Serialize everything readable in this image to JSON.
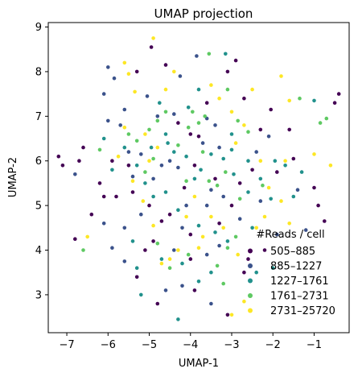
{
  "chart_data": {
    "type": "scatter",
    "title": "UMAP projection",
    "xlabel": "UMAP-1",
    "ylabel": "UMAP-2",
    "xlim": [
      -7.45,
      -0.15
    ],
    "ylim": [
      2.15,
      9.1
    ],
    "xticks": [
      -7,
      -6,
      -5,
      -4,
      -3,
      -2,
      -1
    ],
    "yticks": [
      3,
      4,
      5,
      6,
      7,
      8,
      9
    ],
    "x_tick_labels": [
      "−7",
      "−6",
      "−5",
      "−4",
      "−3",
      "−2",
      "−1"
    ],
    "y_tick_labels": [
      "3",
      "4",
      "5",
      "6",
      "7",
      "8",
      "9"
    ],
    "grid": false,
    "legend": {
      "title": "#Reads / cell",
      "placement": "lower-right",
      "entries": [
        "505–885",
        "885–1227",
        "1227–1761",
        "1761–2731",
        "2731–25720"
      ]
    },
    "series": [
      {
        "color": "#440154",
        "points": [
          [
            -7.2,
            6.1
          ],
          [
            -7.1,
            5.9
          ],
          [
            -6.7,
            6.0
          ],
          [
            -6.6,
            6.3
          ],
          [
            -6.2,
            5.5
          ],
          [
            -5.9,
            6.0
          ],
          [
            -5.5,
            5.9
          ],
          [
            -6.4,
            4.8
          ],
          [
            -5.4,
            5.3
          ],
          [
            -5.3,
            8.0
          ],
          [
            -4.95,
            8.55
          ],
          [
            -4.6,
            8.15
          ],
          [
            -4.3,
            6.85
          ],
          [
            -4.0,
            6.6
          ],
          [
            -3.8,
            6.55
          ],
          [
            -3.6,
            7.3
          ],
          [
            -3.1,
            8.0
          ],
          [
            -2.9,
            8.25
          ],
          [
            -2.7,
            7.4
          ],
          [
            -2.05,
            7.15
          ],
          [
            -2.3,
            6.7
          ],
          [
            -1.5,
            6.05
          ],
          [
            -1.6,
            6.7
          ],
          [
            -0.5,
            7.3
          ],
          [
            -0.4,
            7.5
          ],
          [
            -0.9,
            5.0
          ],
          [
            -0.75,
            4.65
          ],
          [
            -1.0,
            5.4
          ],
          [
            -2.5,
            5.8
          ],
          [
            -2.8,
            5.5
          ],
          [
            -3.0,
            5.0
          ],
          [
            -3.3,
            4.6
          ],
          [
            -3.9,
            5.9
          ],
          [
            -4.15,
            5.4
          ],
          [
            -4.5,
            4.8
          ],
          [
            -4.7,
            4.65
          ],
          [
            -4.9,
            4.2
          ],
          [
            -5.1,
            4.0
          ],
          [
            -5.3,
            3.4
          ],
          [
            -4.8,
            2.8
          ],
          [
            -4.0,
            3.8
          ],
          [
            -3.9,
            3.1
          ],
          [
            -3.1,
            2.55
          ],
          [
            -2.7,
            3.5
          ],
          [
            -2.6,
            3.8
          ],
          [
            -6.1,
            5.2
          ],
          [
            -5.8,
            5.2
          ],
          [
            -5.0,
            5.0
          ],
          [
            -4.0,
            4.35
          ],
          [
            -3.4,
            5.6
          ],
          [
            -2.2,
            4.0
          ],
          [
            -1.9,
            5.75
          ],
          [
            -6.8,
            4.25
          ]
        ]
      },
      {
        "color": "#3b528b",
        "points": [
          [
            -6.8,
            5.7
          ],
          [
            -6.0,
            8.1
          ],
          [
            -6.1,
            7.5
          ],
          [
            -6.0,
            6.9
          ],
          [
            -5.7,
            6.8
          ],
          [
            -5.85,
            7.85
          ],
          [
            -5.6,
            7.15
          ],
          [
            -5.05,
            7.45
          ],
          [
            -4.8,
            7.0
          ],
          [
            -4.4,
            7.05
          ],
          [
            -4.25,
            7.9
          ],
          [
            -3.85,
            8.35
          ],
          [
            -3.6,
            6.95
          ],
          [
            -3.3,
            6.3
          ],
          [
            -3.4,
            6.8
          ],
          [
            -5.5,
            6.2
          ],
          [
            -5.2,
            6.15
          ],
          [
            -4.9,
            5.6
          ],
          [
            -4.7,
            5.9
          ],
          [
            -4.5,
            6.0
          ],
          [
            -3.7,
            6.4
          ],
          [
            -3.2,
            5.2
          ],
          [
            -3.6,
            5.0
          ],
          [
            -4.1,
            5.0
          ],
          [
            -4.2,
            4.5
          ],
          [
            -5.2,
            4.8
          ],
          [
            -5.6,
            4.5
          ],
          [
            -6.1,
            4.6
          ],
          [
            -5.9,
            4.05
          ],
          [
            -5.6,
            3.75
          ],
          [
            -4.2,
            3.2
          ],
          [
            -3.6,
            3.9
          ],
          [
            -3.3,
            4.1
          ],
          [
            -2.8,
            4.7
          ],
          [
            -2.3,
            5.1
          ],
          [
            -1.4,
            5.35
          ],
          [
            -2.1,
            6.55
          ],
          [
            -2.4,
            6.2
          ],
          [
            -1.2,
            4.45
          ],
          [
            -3.5,
            2.8
          ],
          [
            -4.6,
            3.1
          ],
          [
            -4.4,
            4.0
          ],
          [
            -5.4,
            5.65
          ],
          [
            -4.3,
            5.85
          ],
          [
            -3.5,
            5.35
          ],
          [
            -1.9,
            4.35
          ]
        ]
      },
      {
        "color": "#21918c",
        "points": [
          [
            -6.1,
            6.5
          ],
          [
            -5.9,
            5.8
          ],
          [
            -5.4,
            4.2
          ],
          [
            -5.3,
            3.6
          ],
          [
            -5.2,
            3.0
          ],
          [
            -4.95,
            6.3
          ],
          [
            -4.6,
            5.3
          ],
          [
            -4.55,
            6.4
          ],
          [
            -4.4,
            6.2
          ],
          [
            -4.1,
            6.1
          ],
          [
            -3.9,
            5.6
          ],
          [
            -3.75,
            5.8
          ],
          [
            -3.5,
            6.15
          ],
          [
            -3.2,
            6.05
          ],
          [
            -3.0,
            6.25
          ],
          [
            -2.95,
            5.7
          ],
          [
            -2.6,
            5.3
          ],
          [
            -2.3,
            5.6
          ],
          [
            -2.05,
            5.15
          ],
          [
            -1.95,
            6.0
          ],
          [
            -1.7,
            5.9
          ],
          [
            -1.3,
            5.75
          ],
          [
            -1.5,
            5.2
          ],
          [
            -2.5,
            4.5
          ],
          [
            -2.0,
            3.6
          ],
          [
            -2.4,
            3.5
          ],
          [
            -3.1,
            4.2
          ],
          [
            -3.4,
            4.4
          ],
          [
            -3.8,
            4.55
          ],
          [
            -4.2,
            3.7
          ],
          [
            -3.8,
            3.3
          ],
          [
            -3.5,
            3.5
          ],
          [
            -4.3,
            2.45
          ],
          [
            -4.7,
            3.8
          ],
          [
            -4.9,
            5.2
          ],
          [
            -5.1,
            5.5
          ],
          [
            -5.6,
            6.3
          ],
          [
            -4.75,
            7.3
          ],
          [
            -3.8,
            7.6
          ],
          [
            -3.15,
            8.4
          ],
          [
            -4.05,
            7.2
          ],
          [
            -1.0,
            7.35
          ],
          [
            -4.3,
            4.9
          ],
          [
            -3.0,
            6.6
          ],
          [
            -4.6,
            6.6
          ],
          [
            -5.3,
            5.9
          ],
          [
            -2.6,
            6.0
          ]
        ]
      },
      {
        "color": "#5ec962",
        "points": [
          [
            -6.2,
            6.25
          ],
          [
            -6.6,
            4.0
          ],
          [
            -5.3,
            6.45
          ],
          [
            -5.1,
            5.75
          ],
          [
            -5.0,
            6.7
          ],
          [
            -4.8,
            6.9
          ],
          [
            -4.6,
            7.1
          ],
          [
            -4.3,
            6.35
          ],
          [
            -4.05,
            6.75
          ],
          [
            -3.95,
            7.1
          ],
          [
            -3.7,
            6.2
          ],
          [
            -3.55,
            5.55
          ],
          [
            -3.35,
            5.45
          ],
          [
            -3.15,
            5.75
          ],
          [
            -2.85,
            6.9
          ],
          [
            -2.6,
            6.65
          ],
          [
            -2.9,
            4.3
          ],
          [
            -3.1,
            4.05
          ],
          [
            -3.35,
            3.65
          ],
          [
            -4.05,
            3.9
          ],
          [
            -3.2,
            3.25
          ],
          [
            -4.5,
            3.6
          ],
          [
            -4.8,
            4.15
          ],
          [
            -3.55,
            8.4
          ],
          [
            -3.1,
            7.6
          ],
          [
            -1.35,
            7.4
          ],
          [
            -0.85,
            6.85
          ],
          [
            -0.7,
            6.95
          ],
          [
            -3.8,
            6.85
          ],
          [
            -4.9,
            6.05
          ],
          [
            -4.1,
            5.55
          ],
          [
            -2.25,
            5.45
          ],
          [
            -5.5,
            6.6
          ],
          [
            -3.65,
            7.0
          ],
          [
            -2.8,
            5.15
          ]
        ]
      },
      {
        "color": "#fde725",
        "points": [
          [
            -6.5,
            4.3
          ],
          [
            -5.6,
            8.2
          ],
          [
            -5.5,
            7.95
          ],
          [
            -5.35,
            7.55
          ],
          [
            -5.1,
            6.6
          ],
          [
            -4.9,
            8.75
          ],
          [
            -4.8,
            6.3
          ],
          [
            -5.0,
            6.0
          ],
          [
            -5.4,
            5.55
          ],
          [
            -5.15,
            5.1
          ],
          [
            -4.9,
            4.55
          ],
          [
            -4.7,
            3.7
          ],
          [
            -4.5,
            3.8
          ],
          [
            -4.3,
            4.0
          ],
          [
            -4.1,
            4.75
          ],
          [
            -3.9,
            5.2
          ],
          [
            -3.7,
            4.3
          ],
          [
            -3.5,
            4.75
          ],
          [
            -3.2,
            4.5
          ],
          [
            -3.0,
            2.55
          ],
          [
            -2.7,
            2.85
          ],
          [
            -2.85,
            3.9
          ],
          [
            -2.4,
            4.5
          ],
          [
            -2.1,
            5.4
          ],
          [
            -1.8,
            5.1
          ],
          [
            -1.6,
            4.6
          ],
          [
            -2.2,
            4.75
          ],
          [
            -2.3,
            6.0
          ],
          [
            -2.7,
            6.8
          ],
          [
            -2.5,
            7.6
          ],
          [
            -1.8,
            7.9
          ],
          [
            -1.6,
            7.35
          ],
          [
            -1.0,
            6.15
          ],
          [
            -0.6,
            5.9
          ],
          [
            -3.0,
            7.1
          ],
          [
            -3.3,
            7.4
          ],
          [
            -3.5,
            7.7
          ],
          [
            -4.4,
            8.0
          ],
          [
            -4.6,
            7.6
          ],
          [
            -5.6,
            6.75
          ],
          [
            -5.75,
            6.1
          ],
          [
            -3.8,
            4.05
          ],
          [
            -1.7,
            6.0
          ],
          [
            -2.9,
            6.4
          ]
        ]
      }
    ]
  }
}
